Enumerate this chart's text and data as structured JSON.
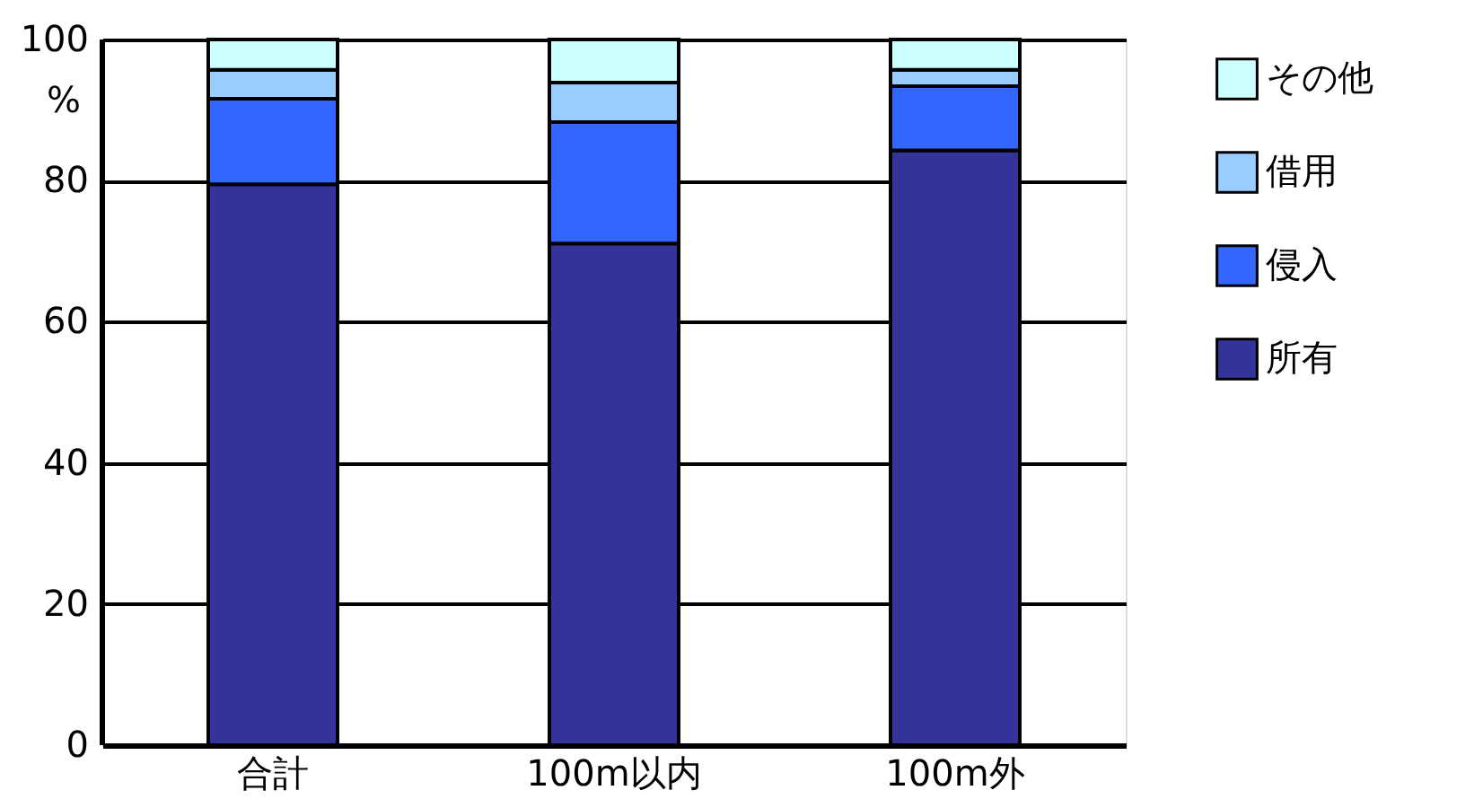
{
  "chart_data": {
    "type": "bar",
    "stacked": true,
    "ylabel": "%",
    "categories": [
      "合計",
      "100m以内",
      "100m外"
    ],
    "series": [
      {
        "name": "所有",
        "color": "#333399",
        "values": [
          79.5,
          71.1,
          84.3
        ]
      },
      {
        "name": "侵入",
        "color": "#3366ff",
        "values": [
          12.1,
          17.2,
          9.1
        ]
      },
      {
        "name": "借用",
        "color": "#99ccff",
        "values": [
          4.1,
          5.6,
          2.3
        ]
      },
      {
        "name": "その他",
        "color": "#ccffff",
        "values": [
          4.3,
          6.1,
          4.3
        ]
      }
    ],
    "ylim": [
      0,
      100
    ],
    "yticks": [
      0,
      20,
      40,
      60,
      80,
      100
    ],
    "grid": "y",
    "legend": "right"
  }
}
